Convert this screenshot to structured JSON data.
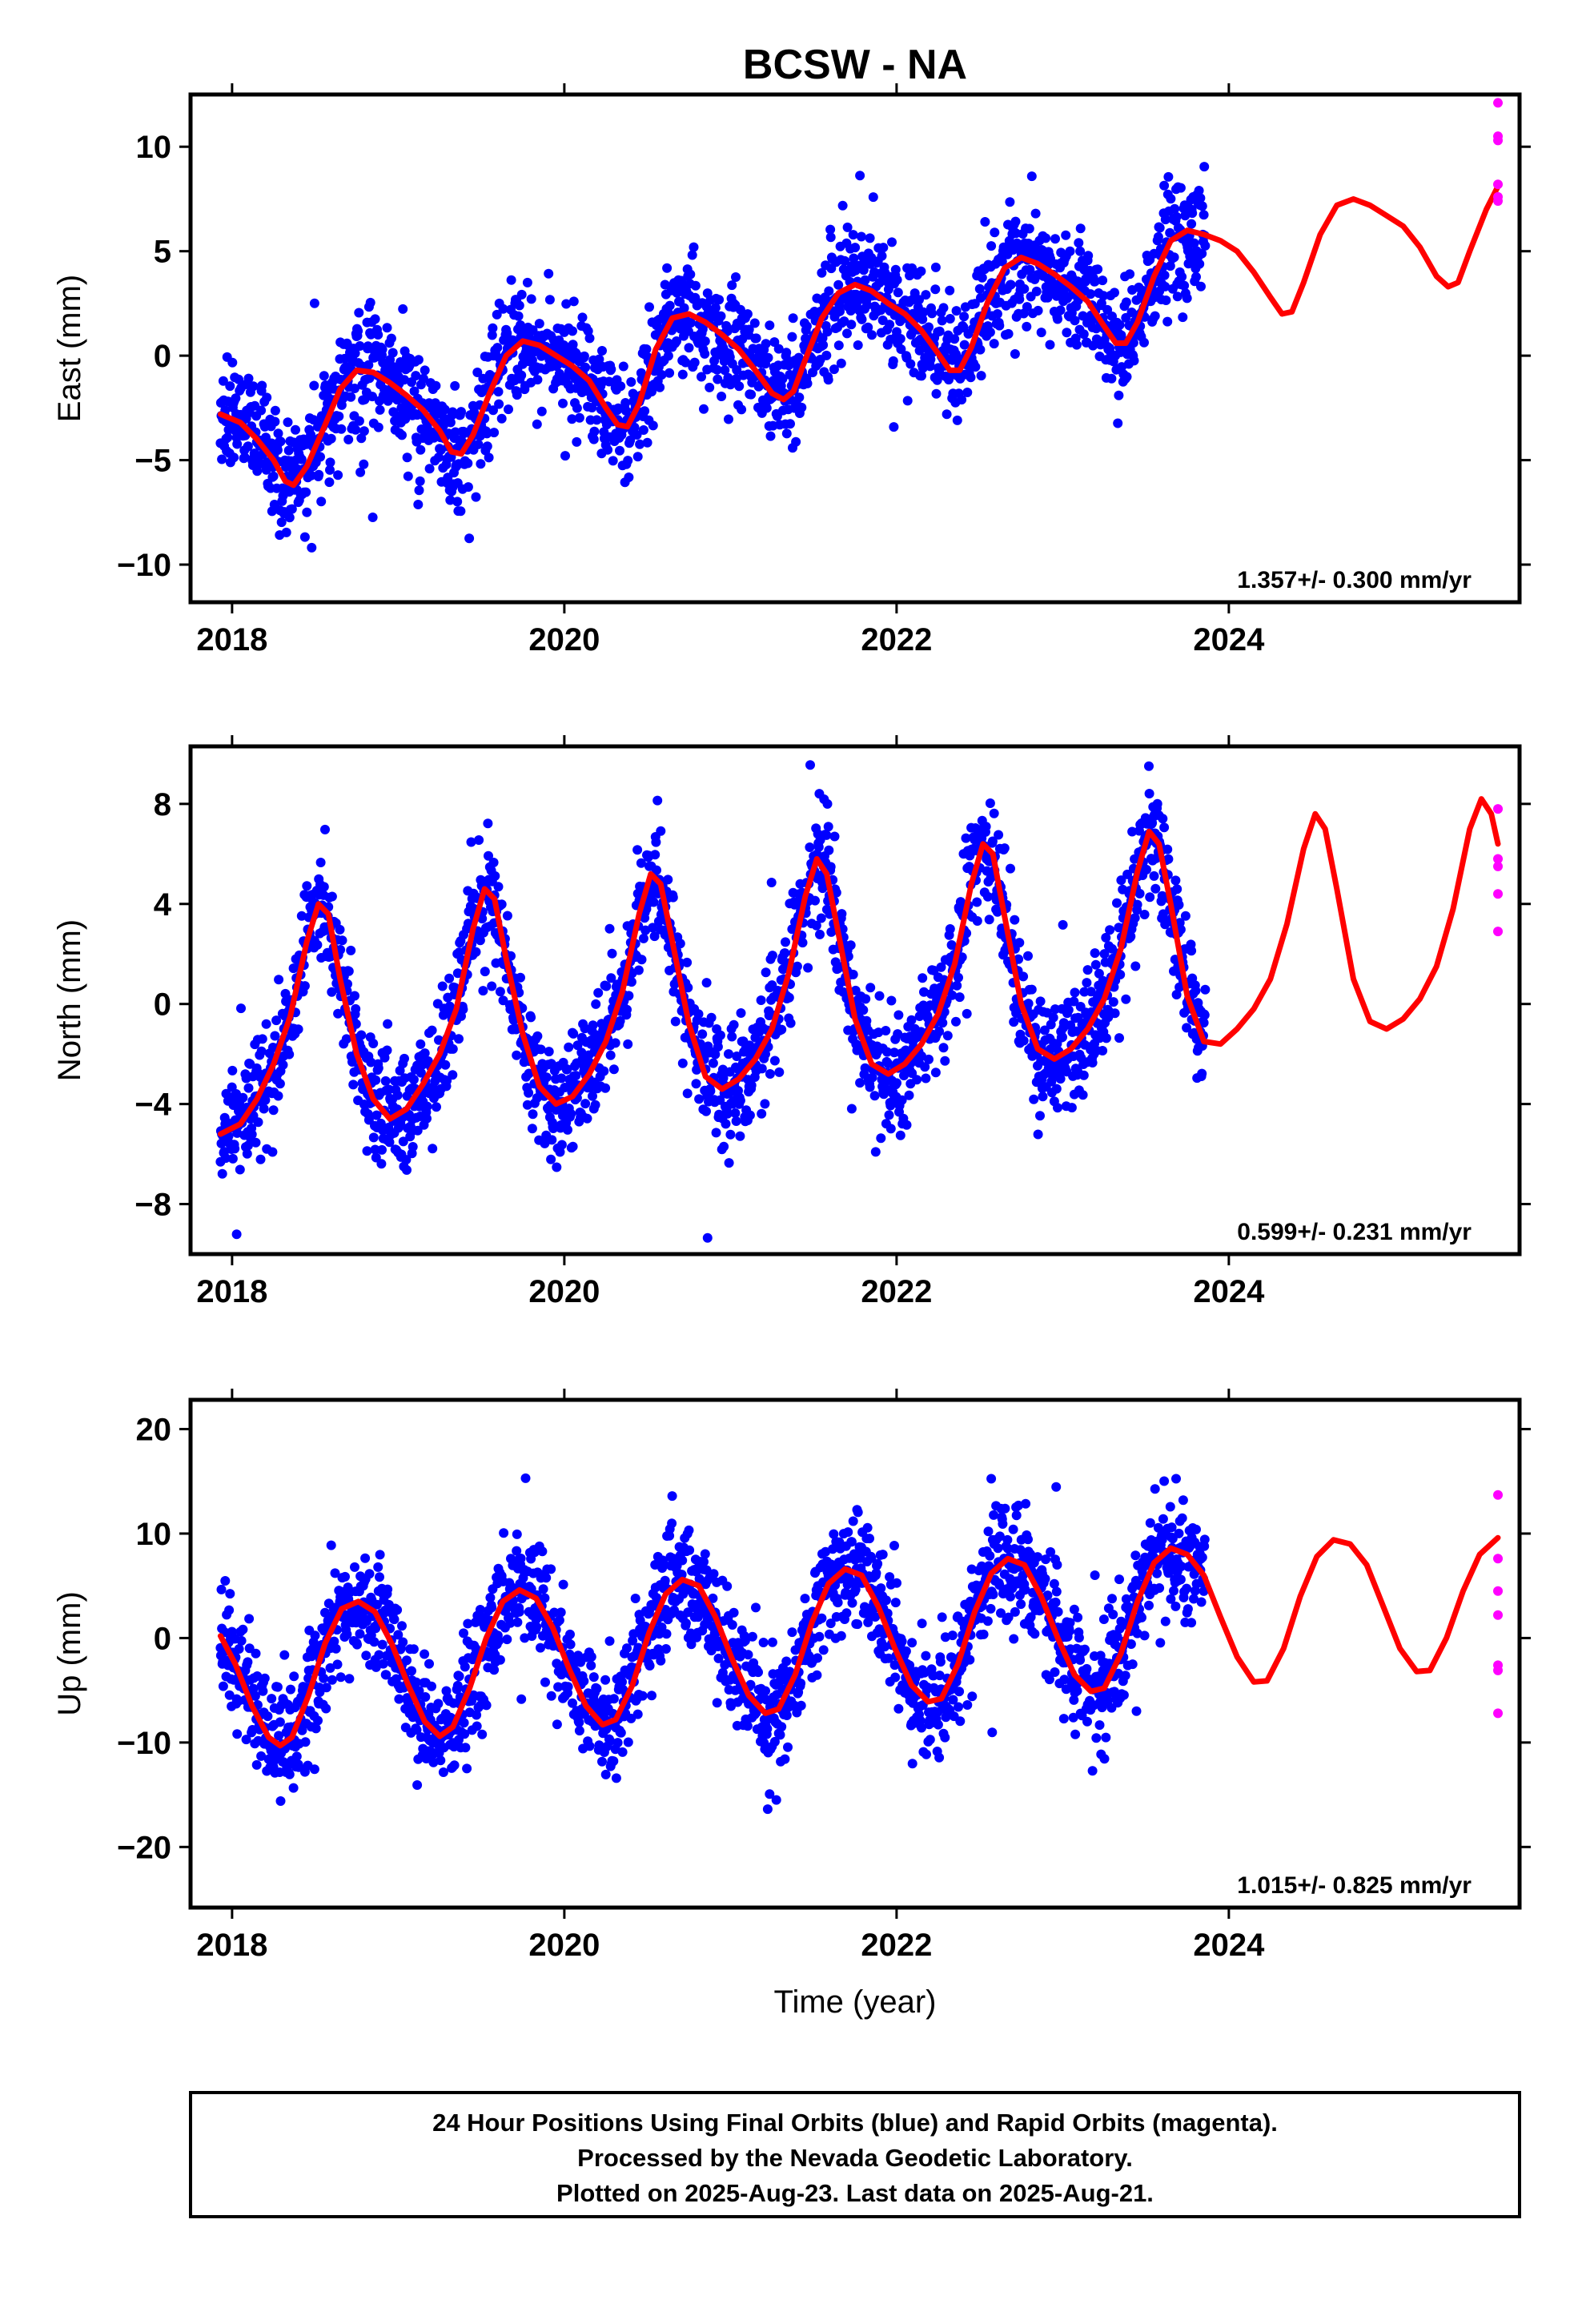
{
  "title": "BCSW - NA",
  "xlabel": "Time (year)",
  "caption": [
    "24 Hour Positions Using Final Orbits (blue) and Rapid Orbits (magenta).",
    "Processed by the Nevada Geodetic Laboratory.",
    "Plotted on 2025-Aug-23. Last data on 2025-Aug-21."
  ],
  "colors": {
    "final": "#0000ff",
    "rapid": "#ff00ff",
    "model": "#ff0000",
    "frame": "#000000"
  },
  "chart_data": [
    {
      "type": "scatter",
      "ylabel": "East (mm)",
      "rate_label": "1.357+/- 0.300 mm/yr",
      "xlim": [
        2017.75,
        2025.75
      ],
      "ylim": [
        -11.8,
        12.5
      ],
      "xticks": [
        2018,
        2020,
        2022,
        2024
      ],
      "xtick_labels": [
        "2018",
        "2020",
        "2022",
        "2024"
      ],
      "yticks": [
        -10,
        -5,
        0,
        5,
        10
      ],
      "ytick_labels": [
        "−10",
        "−5",
        "0",
        "5",
        "10"
      ],
      "final_range": [
        2017.93,
        2023.86
      ],
      "rapid_points": [
        [
          2025.62,
          12.1
        ],
        [
          2025.62,
          10.5
        ],
        [
          2025.62,
          10.3
        ],
        [
          2025.62,
          8.2
        ],
        [
          2025.62,
          7.4
        ],
        [
          2025.62,
          7.6
        ]
      ],
      "model": [
        [
          2017.93,
          -2.8
        ],
        [
          2018.05,
          -3.2
        ],
        [
          2018.15,
          -4.0
        ],
        [
          2018.25,
          -5.0
        ],
        [
          2018.32,
          -6.0
        ],
        [
          2018.37,
          -6.2
        ],
        [
          2018.45,
          -5.3
        ],
        [
          2018.55,
          -3.5
        ],
        [
          2018.65,
          -1.6
        ],
        [
          2018.75,
          -0.7
        ],
        [
          2018.85,
          -0.8
        ],
        [
          2018.95,
          -1.3
        ],
        [
          2019.05,
          -1.9
        ],
        [
          2019.15,
          -2.6
        ],
        [
          2019.25,
          -3.6
        ],
        [
          2019.32,
          -4.6
        ],
        [
          2019.38,
          -4.7
        ],
        [
          2019.45,
          -3.8
        ],
        [
          2019.55,
          -1.8
        ],
        [
          2019.65,
          0.0
        ],
        [
          2019.75,
          0.7
        ],
        [
          2019.85,
          0.5
        ],
        [
          2019.95,
          0.0
        ],
        [
          2020.05,
          -0.5
        ],
        [
          2020.15,
          -1.2
        ],
        [
          2020.25,
          -2.5
        ],
        [
          2020.32,
          -3.3
        ],
        [
          2020.38,
          -3.4
        ],
        [
          2020.45,
          -2.3
        ],
        [
          2020.55,
          0.3
        ],
        [
          2020.65,
          1.8
        ],
        [
          2020.75,
          2.0
        ],
        [
          2020.85,
          1.6
        ],
        [
          2020.95,
          1.0
        ],
        [
          2021.05,
          0.3
        ],
        [
          2021.15,
          -0.7
        ],
        [
          2021.25,
          -1.8
        ],
        [
          2021.32,
          -2.1
        ],
        [
          2021.38,
          -1.7
        ],
        [
          2021.45,
          -0.2
        ],
        [
          2021.55,
          1.8
        ],
        [
          2021.65,
          3.0
        ],
        [
          2021.75,
          3.4
        ],
        [
          2021.85,
          3.1
        ],
        [
          2021.95,
          2.5
        ],
        [
          2022.05,
          2.0
        ],
        [
          2022.15,
          1.2
        ],
        [
          2022.25,
          0.1
        ],
        [
          2022.32,
          -0.7
        ],
        [
          2022.38,
          -0.7
        ],
        [
          2022.45,
          0.4
        ],
        [
          2022.55,
          2.6
        ],
        [
          2022.65,
          4.2
        ],
        [
          2022.75,
          4.7
        ],
        [
          2022.85,
          4.4
        ],
        [
          2022.95,
          3.9
        ],
        [
          2023.05,
          3.3
        ],
        [
          2023.15,
          2.6
        ],
        [
          2023.25,
          1.4
        ],
        [
          2023.32,
          0.6
        ],
        [
          2023.38,
          0.6
        ],
        [
          2023.45,
          1.6
        ],
        [
          2023.55,
          3.8
        ],
        [
          2023.65,
          5.5
        ],
        [
          2023.75,
          6.0
        ],
        [
          2023.85,
          5.8
        ],
        [
          2023.95,
          5.5
        ],
        [
          2024.05,
          5.0
        ],
        [
          2024.15,
          4.0
        ],
        [
          2024.25,
          2.8
        ],
        [
          2024.32,
          2.0
        ],
        [
          2024.38,
          2.1
        ],
        [
          2024.45,
          3.5
        ],
        [
          2024.55,
          5.8
        ],
        [
          2024.65,
          7.2
        ],
        [
          2024.75,
          7.5
        ],
        [
          2024.85,
          7.2
        ],
        [
          2024.95,
          6.7
        ],
        [
          2025.05,
          6.2
        ],
        [
          2025.15,
          5.2
        ],
        [
          2025.25,
          3.8
        ],
        [
          2025.32,
          3.3
        ],
        [
          2025.38,
          3.5
        ],
        [
          2025.45,
          5.0
        ],
        [
          2025.55,
          7.0
        ],
        [
          2025.62,
          8.1
        ]
      ]
    },
    {
      "type": "scatter",
      "ylabel": "North (mm)",
      "rate_label": "0.599+/- 0.231 mm/yr",
      "xlim": [
        2017.75,
        2025.75
      ],
      "ylim": [
        -10.0,
        10.3
      ],
      "xticks": [
        2018,
        2020,
        2022,
        2024
      ],
      "xtick_labels": [
        "2018",
        "2020",
        "2022",
        "2024"
      ],
      "yticks": [
        -8,
        -4,
        0,
        4,
        8
      ],
      "ytick_labels": [
        "−8",
        "−4",
        "0",
        "4",
        "8"
      ],
      "final_range": [
        2017.93,
        2023.86
      ],
      "rapid_points": [
        [
          2025.62,
          7.8
        ],
        [
          2025.62,
          5.8
        ],
        [
          2025.62,
          5.5
        ],
        [
          2025.62,
          4.4
        ],
        [
          2025.62,
          2.9
        ]
      ],
      "model": [
        [
          2017.93,
          -5.2
        ],
        [
          2018.05,
          -4.8
        ],
        [
          2018.15,
          -3.8
        ],
        [
          2018.25,
          -2.4
        ],
        [
          2018.35,
          -0.5
        ],
        [
          2018.45,
          2.5
        ],
        [
          2018.52,
          4.0
        ],
        [
          2018.58,
          3.6
        ],
        [
          2018.65,
          1.0
        ],
        [
          2018.75,
          -2.0
        ],
        [
          2018.85,
          -3.8
        ],
        [
          2018.95,
          -4.6
        ],
        [
          2019.05,
          -4.2
        ],
        [
          2019.15,
          -3.2
        ],
        [
          2019.25,
          -2.0
        ],
        [
          2019.35,
          -0.2
        ],
        [
          2019.45,
          3.0
        ],
        [
          2019.52,
          4.6
        ],
        [
          2019.58,
          4.2
        ],
        [
          2019.65,
          1.8
        ],
        [
          2019.75,
          -1.2
        ],
        [
          2019.85,
          -3.3
        ],
        [
          2019.95,
          -4.0
        ],
        [
          2020.05,
          -3.7
        ],
        [
          2020.15,
          -2.8
        ],
        [
          2020.25,
          -1.5
        ],
        [
          2020.35,
          0.5
        ],
        [
          2020.45,
          3.6
        ],
        [
          2020.52,
          5.2
        ],
        [
          2020.58,
          4.8
        ],
        [
          2020.65,
          2.5
        ],
        [
          2020.75,
          -0.8
        ],
        [
          2020.85,
          -2.9
        ],
        [
          2020.95,
          -3.4
        ],
        [
          2021.05,
          -3.0
        ],
        [
          2021.15,
          -2.2
        ],
        [
          2021.25,
          -1.0
        ],
        [
          2021.35,
          1.2
        ],
        [
          2021.45,
          4.3
        ],
        [
          2021.52,
          5.8
        ],
        [
          2021.58,
          5.2
        ],
        [
          2021.65,
          2.8
        ],
        [
          2021.75,
          -0.6
        ],
        [
          2021.85,
          -2.4
        ],
        [
          2021.95,
          -2.8
        ],
        [
          2022.05,
          -2.4
        ],
        [
          2022.15,
          -1.6
        ],
        [
          2022.25,
          -0.4
        ],
        [
          2022.35,
          1.6
        ],
        [
          2022.45,
          4.8
        ],
        [
          2022.52,
          6.4
        ],
        [
          2022.58,
          6.0
        ],
        [
          2022.65,
          3.5
        ],
        [
          2022.75,
          0.0
        ],
        [
          2022.85,
          -1.8
        ],
        [
          2022.95,
          -2.2
        ],
        [
          2023.05,
          -1.8
        ],
        [
          2023.15,
          -1.0
        ],
        [
          2023.25,
          0.2
        ],
        [
          2023.35,
          2.2
        ],
        [
          2023.45,
          5.3
        ],
        [
          2023.52,
          6.9
        ],
        [
          2023.58,
          6.4
        ],
        [
          2023.65,
          4.0
        ],
        [
          2023.75,
          0.3
        ],
        [
          2023.85,
          -1.5
        ],
        [
          2023.95,
          -1.6
        ],
        [
          2024.05,
          -1.0
        ],
        [
          2024.15,
          -0.2
        ],
        [
          2024.25,
          1.0
        ],
        [
          2024.35,
          3.2
        ],
        [
          2024.45,
          6.2
        ],
        [
          2024.52,
          7.6
        ],
        [
          2024.58,
          7.0
        ],
        [
          2024.65,
          4.6
        ],
        [
          2024.75,
          1.0
        ],
        [
          2024.85,
          -0.7
        ],
        [
          2024.95,
          -1.0
        ],
        [
          2025.05,
          -0.6
        ],
        [
          2025.15,
          0.2
        ],
        [
          2025.25,
          1.5
        ],
        [
          2025.35,
          3.8
        ],
        [
          2025.45,
          7.0
        ],
        [
          2025.52,
          8.2
        ],
        [
          2025.58,
          7.6
        ],
        [
          2025.62,
          6.4
        ]
      ]
    },
    {
      "type": "scatter",
      "ylabel": "Up (mm)",
      "rate_label": "1.015+/- 0.825 mm/yr",
      "xlim": [
        2017.75,
        2025.75
      ],
      "ylim": [
        -25.8,
        22.8
      ],
      "xticks": [
        2018,
        2020,
        2022,
        2024
      ],
      "xtick_labels": [
        "2018",
        "2020",
        "2022",
        "2024"
      ],
      "yticks": [
        -20,
        -10,
        0,
        10,
        20
      ],
      "ytick_labels": [
        "−20",
        "−10",
        "0",
        "10",
        "20"
      ],
      "final_range": [
        2017.93,
        2023.86
      ],
      "rapid_points": [
        [
          2025.62,
          13.7
        ],
        [
          2025.62,
          7.6
        ],
        [
          2025.62,
          4.5
        ],
        [
          2025.62,
          2.2
        ],
        [
          2025.62,
          -2.6
        ],
        [
          2025.62,
          -3.1
        ],
        [
          2025.62,
          -7.2
        ]
      ],
      "model": [
        [
          2017.93,
          0.2
        ],
        [
          2018.02,
          -2.5
        ],
        [
          2018.12,
          -6.5
        ],
        [
          2018.22,
          -9.5
        ],
        [
          2018.29,
          -10.3
        ],
        [
          2018.36,
          -9.5
        ],
        [
          2018.46,
          -5.5
        ],
        [
          2018.56,
          -0.5
        ],
        [
          2018.66,
          2.8
        ],
        [
          2018.76,
          3.5
        ],
        [
          2018.86,
          2.5
        ],
        [
          2018.96,
          -0.5
        ],
        [
          2019.06,
          -4.5
        ],
        [
          2019.16,
          -8.0
        ],
        [
          2019.25,
          -9.4
        ],
        [
          2019.33,
          -8.5
        ],
        [
          2019.43,
          -4.8
        ],
        [
          2019.53,
          0.0
        ],
        [
          2019.63,
          3.5
        ],
        [
          2019.73,
          4.6
        ],
        [
          2019.83,
          3.8
        ],
        [
          2019.93,
          1.0
        ],
        [
          2020.03,
          -3.0
        ],
        [
          2020.13,
          -6.5
        ],
        [
          2020.23,
          -8.3
        ],
        [
          2020.31,
          -7.8
        ],
        [
          2020.41,
          -4.5
        ],
        [
          2020.51,
          0.5
        ],
        [
          2020.61,
          4.2
        ],
        [
          2020.71,
          5.6
        ],
        [
          2020.81,
          5.0
        ],
        [
          2020.91,
          2.0
        ],
        [
          2021.01,
          -2.0
        ],
        [
          2021.11,
          -5.5
        ],
        [
          2021.21,
          -7.2
        ],
        [
          2021.29,
          -6.8
        ],
        [
          2021.39,
          -3.5
        ],
        [
          2021.49,
          1.5
        ],
        [
          2021.59,
          5.2
        ],
        [
          2021.69,
          6.6
        ],
        [
          2021.79,
          6.0
        ],
        [
          2021.89,
          3.0
        ],
        [
          2021.99,
          -1.0
        ],
        [
          2022.09,
          -4.5
        ],
        [
          2022.19,
          -6.1
        ],
        [
          2022.27,
          -5.8
        ],
        [
          2022.37,
          -2.5
        ],
        [
          2022.47,
          2.5
        ],
        [
          2022.57,
          6.2
        ],
        [
          2022.67,
          7.6
        ],
        [
          2022.77,
          7.0
        ],
        [
          2022.87,
          4.0
        ],
        [
          2022.97,
          0.0
        ],
        [
          2023.07,
          -3.5
        ],
        [
          2023.17,
          -5.1
        ],
        [
          2023.25,
          -4.8
        ],
        [
          2023.35,
          -1.5
        ],
        [
          2023.45,
          3.5
        ],
        [
          2023.55,
          7.2
        ],
        [
          2023.65,
          8.6
        ],
        [
          2023.75,
          8.0
        ],
        [
          2023.85,
          6.0
        ],
        [
          2023.95,
          2.0
        ],
        [
          2024.05,
          -1.8
        ],
        [
          2024.15,
          -4.2
        ],
        [
          2024.23,
          -4.1
        ],
        [
          2024.33,
          -1.0
        ],
        [
          2024.43,
          4.0
        ],
        [
          2024.53,
          7.8
        ],
        [
          2024.63,
          9.4
        ],
        [
          2024.73,
          9.0
        ],
        [
          2024.83,
          7.0
        ],
        [
          2024.93,
          3.0
        ],
        [
          2025.03,
          -1.0
        ],
        [
          2025.13,
          -3.2
        ],
        [
          2025.21,
          -3.1
        ],
        [
          2025.31,
          0.0
        ],
        [
          2025.41,
          4.5
        ],
        [
          2025.51,
          8.0
        ],
        [
          2025.62,
          9.6
        ]
      ]
    }
  ]
}
